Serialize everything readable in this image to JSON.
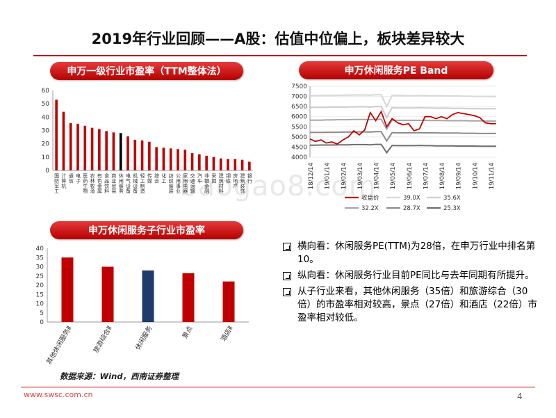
{
  "page": {
    "title": "2019年行业回顾——A股：估值中位偏上，板块差异较大",
    "watermark": "baogao8.com",
    "footer_url": "www.swsc.com.cn",
    "page_number": "4",
    "source": "数据来源：Wind，西南证券整理",
    "colors": {
      "accent": "#c00000",
      "highlight_black": "#000000",
      "highlight_blue": "#1f3a6b",
      "band_gray": "#bfbfbf"
    }
  },
  "bullets": [
    "横向看：休闲服务PE(TTM)为28倍，在申万行业中排名第10。",
    "纵向看：休闲服务行业目前PE同比与去年同期有所提升。",
    "从子行业来看，其他休闲服务（35倍）和旅游综合（30倍）的市盈率相对较高，景点（27倍）和酒店（22倍）市盈率相对较低。"
  ],
  "chart_data": [
    {
      "type": "bar",
      "title": "申万一级行业市盈率（TTM整体法）",
      "ylim": [
        0,
        60
      ],
      "yticks": [
        0,
        10,
        20,
        30,
        40,
        50,
        60
      ],
      "categories": [
        "国防军工",
        "计算机",
        "通信",
        "电子",
        "医药生物",
        "农林牧渔",
        "有色金属",
        "食品饮料",
        "商业贸易",
        "休闲服务",
        "电气设备",
        "机械设备",
        "轻工制造",
        "传媒",
        "综合",
        "化工",
        "纺织服装",
        "公用事业",
        "家用电器",
        "交通运输",
        "汽车",
        "非银金融",
        "采掘",
        "建筑材料",
        "钢铁",
        "房地产",
        "建筑装饰",
        "银行"
      ],
      "values": [
        53,
        44,
        35.5,
        35,
        33.5,
        32,
        31,
        29.5,
        28.5,
        28,
        25.5,
        23,
        22.5,
        21.5,
        17.5,
        17,
        16.5,
        16,
        15.5,
        13,
        12,
        11,
        10,
        9,
        8.5,
        8.5,
        8,
        6.5
      ],
      "highlight_index": 9
    },
    {
      "type": "line",
      "title": "申万休闲服务PE Band",
      "ylim": [
        4000,
        7500
      ],
      "yticks": [
        4000,
        4500,
        5000,
        5500,
        6000,
        6500,
        7000,
        7500
      ],
      "x_ticks": [
        "18/12/14",
        "19/01/14",
        "19/02/14",
        "19/03/14",
        "19/04/14",
        "19/05/14",
        "19/06/14",
        "19/07/14",
        "19/08/14",
        "19/09/14",
        "19/10/14",
        "19/11/14"
      ],
      "legend": [
        "收盘价",
        "39.0X",
        "35.6X",
        "32.2X",
        "28.7X",
        "25.3X"
      ],
      "bands": [
        {
          "name": "39.0X",
          "values": [
            7030,
            7040,
            7040,
            7050,
            7050,
            7050,
            7060,
            7060,
            7070,
            7070,
            7070,
            7060,
            7080,
            7080,
            6500,
            7050,
            7040,
            7040,
            7030,
            7030,
            7040,
            7040,
            7030,
            7030,
            7030,
            7020,
            7020,
            7020,
            7010,
            7010,
            7000,
            7000,
            7000,
            7000,
            7000
          ]
        },
        {
          "name": "35.6X",
          "values": [
            6450,
            6460,
            6460,
            6460,
            6470,
            6470,
            6470,
            6480,
            6480,
            6490,
            6490,
            6470,
            6500,
            6500,
            5950,
            6440,
            6430,
            6430,
            6430,
            6430,
            6440,
            6430,
            6430,
            6420,
            6420,
            6420,
            6410,
            6410,
            6410,
            6400,
            6400,
            6400,
            6390,
            6390,
            6390
          ]
        },
        {
          "name": "32.2X",
          "values": [
            5830,
            5830,
            5830,
            5840,
            5840,
            5850,
            5850,
            5850,
            5860,
            5860,
            5860,
            5850,
            5870,
            5870,
            5380,
            5830,
            5820,
            5820,
            5820,
            5820,
            5820,
            5820,
            5810,
            5810,
            5810,
            5800,
            5800,
            5800,
            5800,
            5790,
            5790,
            5790,
            5780,
            5780,
            5780
          ]
        },
        {
          "name": "28.7X",
          "values": [
            5220,
            5220,
            5220,
            5230,
            5230,
            5230,
            5240,
            5240,
            5240,
            5250,
            5250,
            5240,
            5260,
            5260,
            4800,
            5210,
            5200,
            5200,
            5200,
            5200,
            5210,
            5200,
            5200,
            5200,
            5190,
            5190,
            5190,
            5190,
            5180,
            5180,
            5180,
            5170,
            5170,
            5170,
            5170
          ]
        },
        {
          "name": "25.3X",
          "values": [
            4590,
            4590,
            4600,
            4600,
            4600,
            4610,
            4610,
            4610,
            4620,
            4620,
            4620,
            4610,
            4630,
            4630,
            4220,
            4580,
            4570,
            4570,
            4570,
            4570,
            4580,
            4570,
            4570,
            4560,
            4560,
            4560,
            4560,
            4550,
            4550,
            4550,
            4550,
            4540,
            4540,
            4540,
            4540
          ]
        }
      ],
      "close": [
        4900,
        4780,
        4850,
        4700,
        4750,
        4650,
        4850,
        5000,
        5300,
        5100,
        5350,
        6200,
        5800,
        6250,
        5500,
        5900,
        5700,
        5600,
        5650,
        5300,
        5400,
        6000,
        6000,
        5900,
        6000,
        5900,
        6100,
        6200,
        6150,
        6100,
        6050,
        5950,
        5700,
        5650,
        5650
      ]
    },
    {
      "type": "bar",
      "title": "申万休闲服务子行业市盈率",
      "ylim": [
        0,
        40
      ],
      "yticks": [
        0,
        5,
        10,
        15,
        20,
        25,
        30,
        35,
        40
      ],
      "categories": [
        "其他休闲服务Ⅱ",
        "旅游综合Ⅱ",
        "休闲服务",
        "景点",
        "酒店Ⅱ"
      ],
      "values": [
        35,
        30,
        28,
        26.5,
        22
      ],
      "highlight_index": 2
    }
  ]
}
